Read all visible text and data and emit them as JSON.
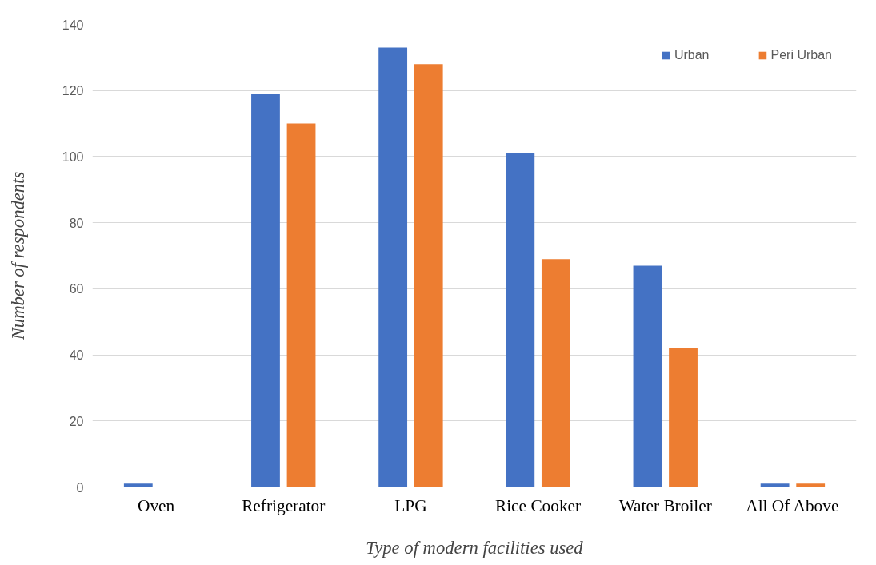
{
  "chart_data": {
    "type": "bar",
    "xlabel": "Type of modern facilities used",
    "ylabel": "Number of respondents",
    "categories": [
      "Oven",
      "Refrigerator",
      "LPG",
      "Rice Cooker",
      "Water Broiler",
      "All Of Above"
    ],
    "series": [
      {
        "name": "Urban",
        "color": "#4472c4",
        "values": [
          1,
          119,
          133,
          101,
          67,
          1
        ]
      },
      {
        "name": "Peri Urban",
        "color": "#ed7d31",
        "values": [
          0,
          110,
          128,
          69,
          42,
          1
        ]
      }
    ],
    "ylim": [
      0,
      140
    ],
    "yticks": [
      0,
      20,
      40,
      60,
      80,
      100,
      120,
      140
    ],
    "grid": "y",
    "legend": "top right"
  }
}
